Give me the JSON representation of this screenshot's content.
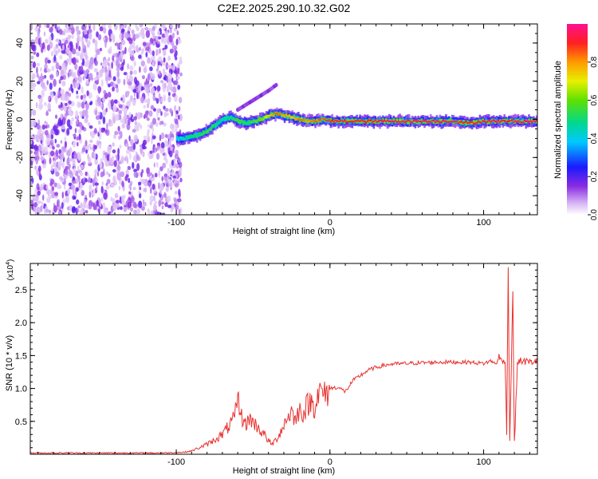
{
  "title": "C2E2.2025.290.10.32.G02",
  "colorbar": {
    "label": "Normalized spectral amplitude",
    "ticks": [
      "0.0",
      "0.2",
      "0.4",
      "0.6",
      "0.8"
    ],
    "range": [
      0,
      1
    ]
  },
  "chart_data": [
    {
      "type": "heatmap",
      "name": "spectrogram",
      "xlabel": "Height of straight line (km)",
      "ylabel": "Frequency (Hz)",
      "xlim": [
        -195,
        135
      ],
      "ylim": [
        -50,
        50
      ],
      "xticks": [
        -100,
        0,
        100
      ],
      "yticks": [
        -40,
        -20,
        0,
        20,
        40
      ],
      "xtick_labels": [
        "-100",
        "0",
        "100"
      ],
      "ytick_labels": [
        "-40",
        "-20",
        "0",
        "20",
        "40"
      ],
      "noise_region_x": [
        -195,
        -100
      ],
      "ridge": {
        "x": [
          -100,
          -95,
          -90,
          -85,
          -80,
          -75,
          -70,
          -65,
          -60,
          -55,
          -50,
          -45,
          -40,
          -35,
          -30,
          -25,
          -20,
          -15,
          -10,
          -5,
          0,
          10,
          20,
          40,
          60,
          80,
          90,
          100,
          110,
          115,
          120,
          135
        ],
        "y": [
          -10,
          -10,
          -9,
          -8,
          -6,
          -3,
          0,
          1,
          -1,
          -2,
          -1,
          0,
          2,
          3,
          2,
          1,
          0,
          -1,
          -1,
          0,
          -1,
          -1,
          -1,
          -1,
          -1,
          -1,
          -2,
          -1,
          -1,
          -1,
          -1,
          -1
        ],
        "amplitude": [
          0.4,
          0.45,
          0.5,
          0.5,
          0.55,
          0.5,
          0.45,
          0.5,
          0.55,
          0.5,
          0.55,
          0.6,
          0.75,
          0.85,
          0.8,
          0.75,
          0.85,
          0.8,
          0.85,
          0.85,
          0.9,
          0.9,
          0.9,
          0.95,
          0.95,
          0.95,
          0.9,
          0.95,
          0.95,
          0.9,
          0.95,
          0.95
        ]
      },
      "branch": {
        "x": [
          -60,
          -50,
          -40,
          -35
        ],
        "y": [
          5,
          10,
          15,
          18
        ]
      }
    },
    {
      "type": "line",
      "name": "snr",
      "xlabel": "Height of straight line (km)",
      "ylabel": "SNR (10 * v/v)",
      "scale_label": "(x10",
      "scale_exponent": "4",
      "xlim": [
        -195,
        135
      ],
      "ylim": [
        0,
        2.9
      ],
      "xticks": [
        -100,
        0,
        100
      ],
      "yticks": [
        0.5,
        1.0,
        1.5,
        2.0,
        2.5
      ],
      "xtick_labels": [
        "-100",
        "0",
        "100"
      ],
      "ytick_labels": [
        "0.5",
        "1.0",
        "1.5",
        "2.0",
        "2.5"
      ],
      "color": "#e8312f",
      "series": [
        {
          "name": "SNR",
          "x": [
            -195,
            -150,
            -110,
            -95,
            -90,
            -85,
            -80,
            -75,
            -70,
            -65,
            -62,
            -60,
            -58,
            -55,
            -52,
            -50,
            -47,
            -45,
            -42,
            -40,
            -38,
            -35,
            -32,
            -30,
            -28,
            -25,
            -22,
            -20,
            -17,
            -15,
            -12,
            -10,
            -8,
            -5,
            -3,
            0,
            5,
            10,
            15,
            20,
            25,
            30,
            35,
            40,
            50,
            60,
            70,
            80,
            90,
            100,
            105,
            108,
            110,
            112,
            114,
            115,
            116,
            117,
            118,
            119,
            120,
            122,
            125,
            130,
            135
          ],
          "y": [
            0.02,
            0.02,
            0.02,
            0.03,
            0.05,
            0.1,
            0.15,
            0.22,
            0.3,
            0.45,
            0.55,
            0.85,
            0.6,
            0.45,
            0.55,
            0.48,
            0.42,
            0.35,
            0.28,
            0.2,
            0.15,
            0.22,
            0.35,
            0.45,
            0.55,
            0.65,
            0.5,
            0.7,
            0.62,
            0.75,
            0.8,
            0.72,
            0.9,
            0.95,
            0.88,
            1.0,
            1.02,
            0.95,
            1.12,
            1.2,
            1.28,
            1.32,
            1.35,
            1.37,
            1.38,
            1.39,
            1.4,
            1.4,
            1.4,
            1.38,
            1.42,
            1.37,
            1.48,
            1.4,
            1.45,
            0.3,
            2.9,
            0.2,
            1.3,
            2.5,
            0.15,
            1.4,
            1.42,
            1.4,
            1.42
          ]
        }
      ]
    }
  ]
}
